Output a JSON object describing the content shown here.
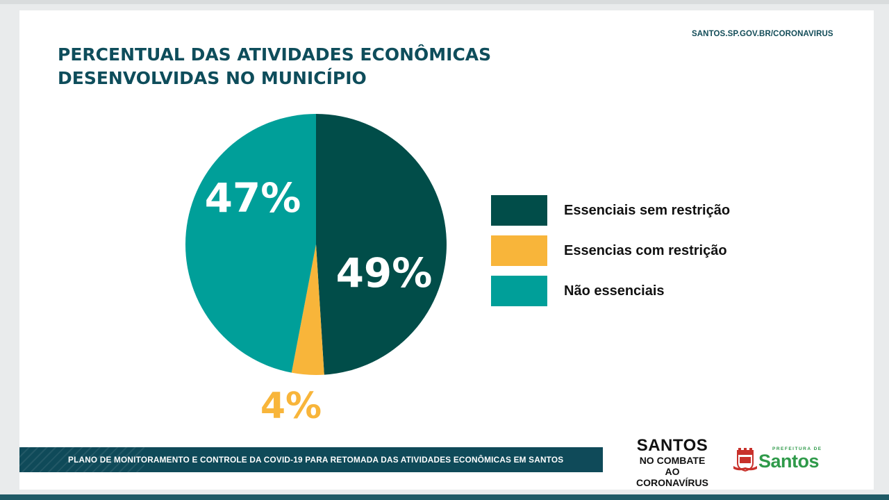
{
  "header": {
    "url": "SANTOS.SP.GOV.BR/CORONAVIRUS",
    "title_line1": "PERCENTUAL DAS ATIVIDADES ECONÔMICAS",
    "title_line2": "DESENVOLVIDAS NO MUNICÍPIO"
  },
  "chart_data": {
    "type": "pie",
    "title": "PERCENTUAL DAS ATIVIDADES ECONÔMICAS DESENVOLVIDAS NO MUNICÍPIO",
    "slices": [
      {
        "name": "Essenciais sem restrição",
        "value": 49,
        "label": "49%",
        "color": "#014d49"
      },
      {
        "name": "Essencias com restrição",
        "value": 4,
        "label": "4%",
        "color": "#f8b53a"
      },
      {
        "name": "Não essenciais",
        "value": 47,
        "label": "47%",
        "color": "#009f99"
      }
    ],
    "legend_position": "right"
  },
  "footer": {
    "banner_text": "PLANO DE MONITORAMENTO E CONTROLE DA COVID-19 PARA RETOMADA DAS ATIVIDADES ECONÔMICAS EM SANTOS",
    "campaign_line1": "SANTOS",
    "campaign_line2": "NO COMBATE",
    "campaign_line3": "AO CORONAVÍRUS",
    "logo_small": "PREFEITURA DE",
    "logo_name": "Santos"
  },
  "colors": {
    "title": "#0e4d5b",
    "banner": "#0f4a59",
    "logo_green": "#2f9a4a",
    "crest_red": "#c8312b"
  },
  "icons": {
    "crest": "coat-of-arms-icon"
  }
}
